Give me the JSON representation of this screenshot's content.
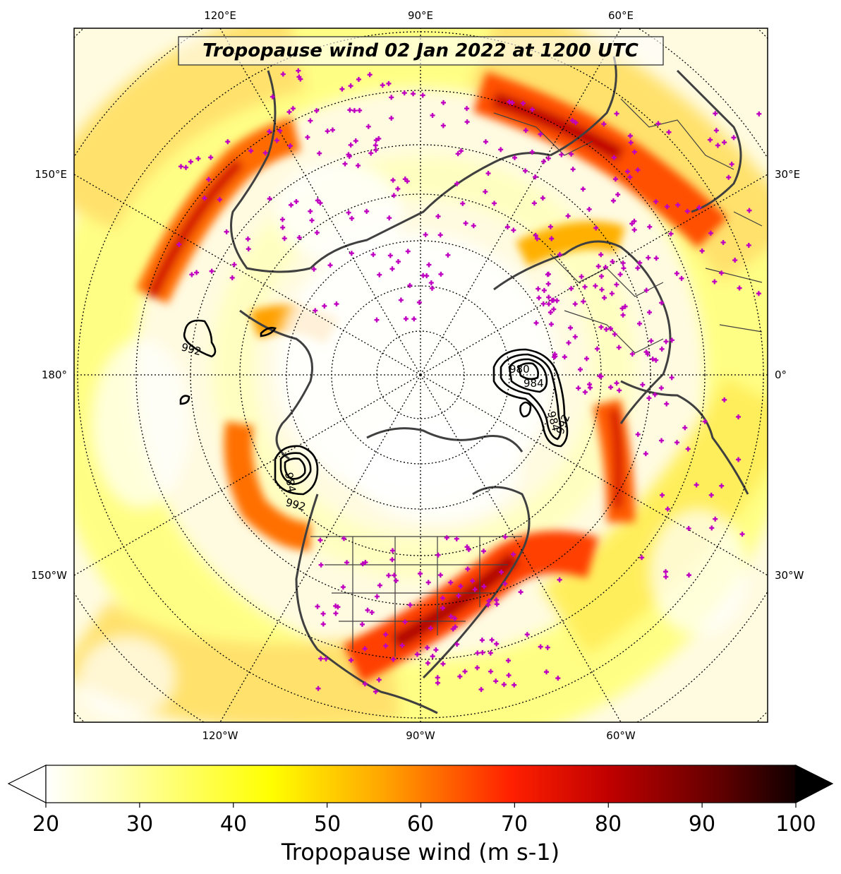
{
  "title": "Tropopause wind 02 Jan 2022 at 1200 UTC",
  "lon_labels": {
    "top": [
      "120°E",
      "90°E",
      "60°E"
    ],
    "left": [
      "150°E",
      "180°",
      "150°W"
    ],
    "right": [
      "30°E",
      "0°",
      "30°W"
    ],
    "bottom": [
      "120°W",
      "90°W",
      "60°W"
    ]
  },
  "colorbar": {
    "label": "Tropopause wind (m s-1)",
    "min": 20,
    "max": 100,
    "ticks": [
      "20",
      "30",
      "40",
      "50",
      "60",
      "70",
      "80",
      "90",
      "100"
    ],
    "extend": "both",
    "colormap": "hot_r"
  },
  "pressure_contour_labels": [
    "992",
    "984",
    "992",
    "984",
    "980",
    "984",
    "992"
  ],
  "colors": {
    "station_marker": "#c000c0",
    "coastline": "#404040",
    "contour": "#000000"
  }
}
